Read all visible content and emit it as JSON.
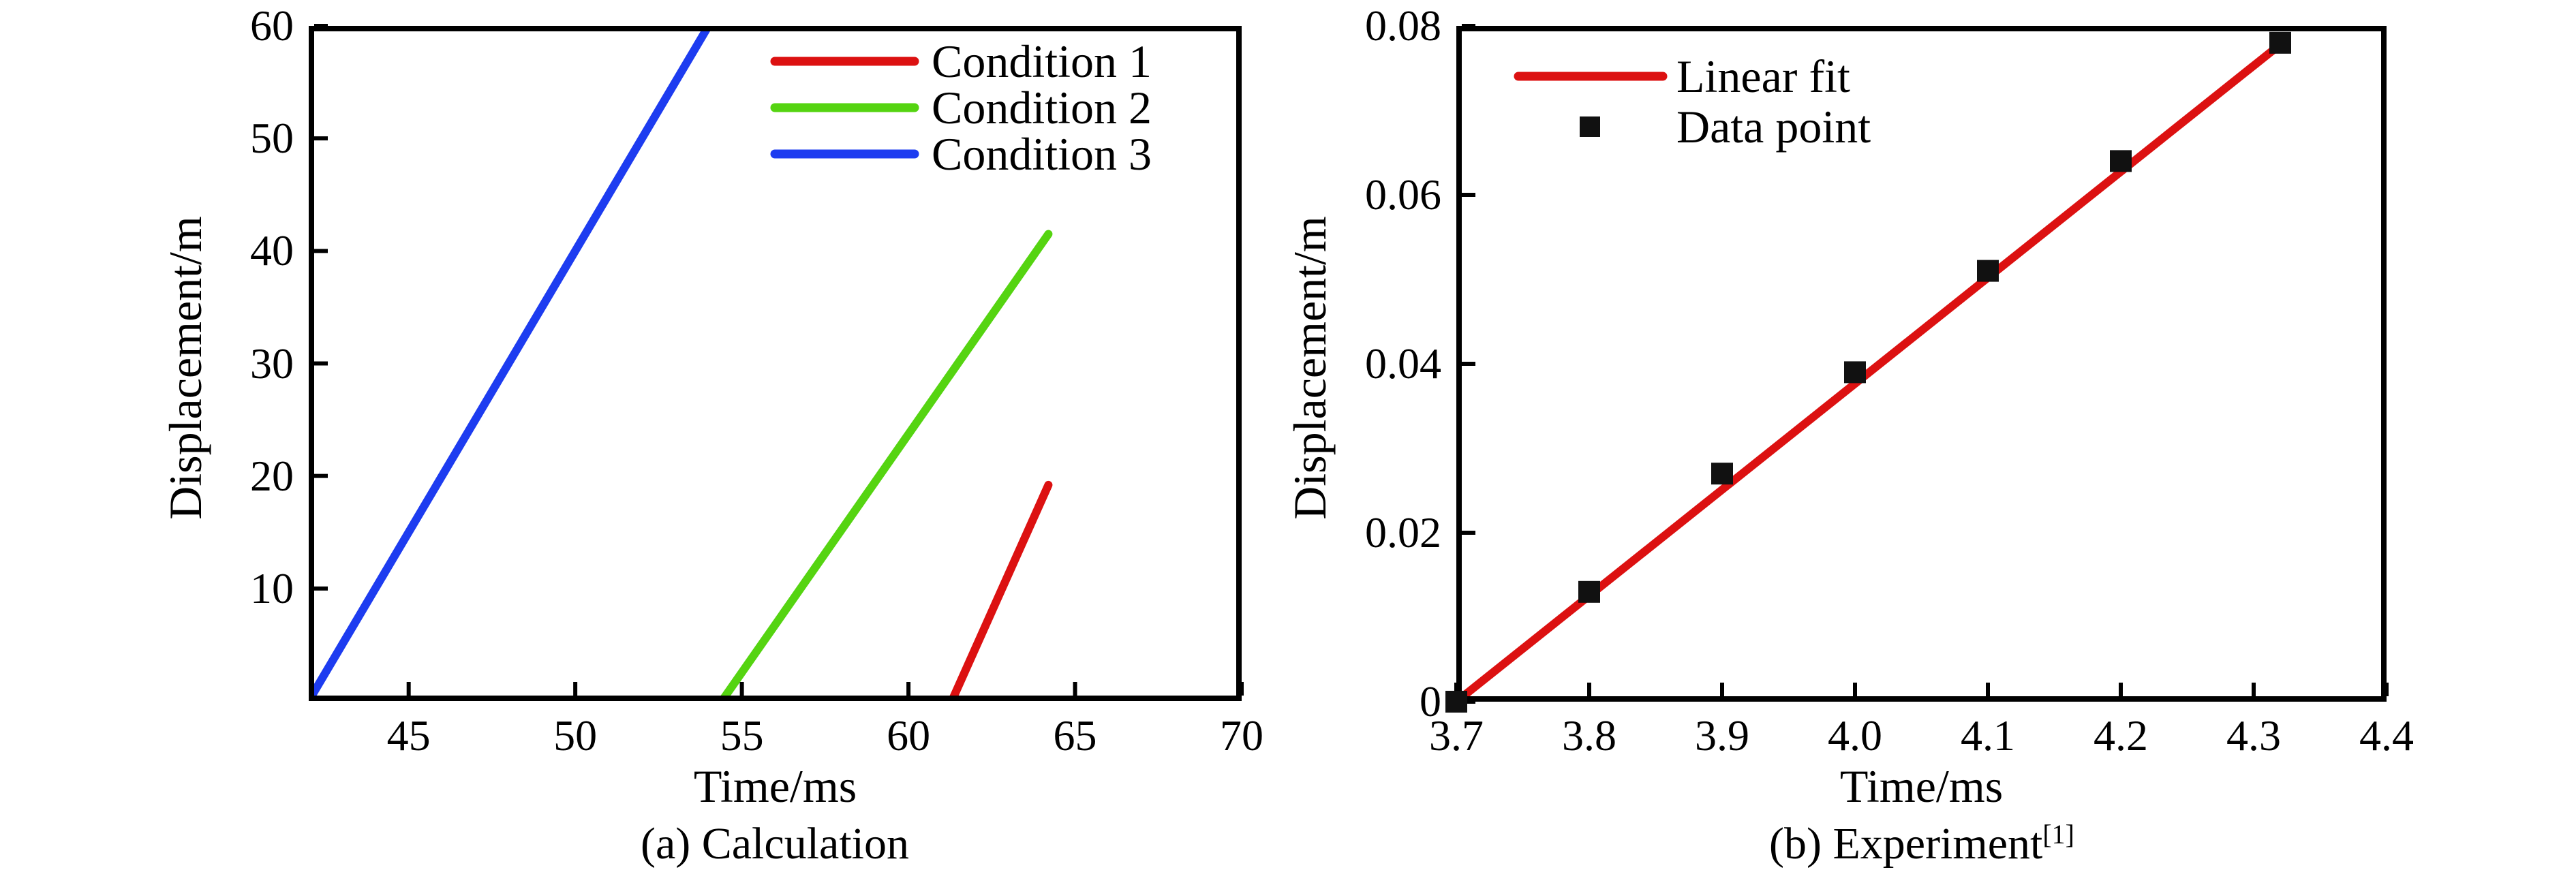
{
  "figure": {
    "background_color": "#ffffff",
    "text_color": "#000000"
  },
  "chart_data": [
    {
      "type": "line",
      "caption": "(a) Calculation",
      "caption_sup": "",
      "xlabel": "Time/ms",
      "ylabel": "Displacement/m",
      "xlim": [
        42,
        70
      ],
      "ylim": [
        0,
        60
      ],
      "xticks": [
        45,
        50,
        55,
        60,
        65,
        70
      ],
      "xtick_labels": [
        "45",
        "50",
        "55",
        "60",
        "65",
        "70"
      ],
      "yticks": [
        10,
        20,
        30,
        40,
        50,
        60
      ],
      "ytick_labels": [
        "10",
        "20",
        "30",
        "40",
        "50",
        "60"
      ],
      "grid": false,
      "legend_position": "top-right-inside",
      "series": [
        {
          "name": "Condition 1",
          "type": "line",
          "color": "#dc1111",
          "points": [
            [
              61.3,
              0
            ],
            [
              64.2,
              19.2
            ]
          ]
        },
        {
          "name": "Condition 2",
          "type": "line",
          "color": "#55d411",
          "points": [
            [
              54.4,
              0
            ],
            [
              64.2,
              41.5
            ]
          ]
        },
        {
          "name": "Condition 3",
          "type": "line",
          "color": "#1d3cf0",
          "points": [
            [
              42.0,
              0
            ],
            [
              54.0,
              60
            ]
          ]
        }
      ]
    },
    {
      "type": "line+scatter",
      "caption": "(b) Experiment",
      "caption_sup": "[1]",
      "xlabel": "Time/ms",
      "ylabel": "Displacement/m",
      "xlim": [
        3.7,
        4.4
      ],
      "ylim": [
        0,
        0.08
      ],
      "xticks": [
        3.7,
        3.8,
        3.9,
        4.0,
        4.1,
        4.2,
        4.3,
        4.4
      ],
      "xtick_labels": [
        "3.7",
        "3.8",
        "3.9",
        "4.0",
        "4.1",
        "4.2",
        "4.3",
        "4.4"
      ],
      "yticks": [
        0,
        0.02,
        0.04,
        0.06,
        0.08
      ],
      "ytick_labels": [
        "0",
        "0.02",
        "0.04",
        "0.06",
        "0.08"
      ],
      "grid": false,
      "legend_position": "top-left-inside",
      "series": [
        {
          "name": "Linear fit",
          "type": "line",
          "color": "#dc1111",
          "points": [
            [
              3.7,
              0
            ],
            [
              4.32,
              0.0778
            ]
          ]
        },
        {
          "name": "Data point",
          "type": "scatter",
          "marker": "square",
          "color": "#111111",
          "points": [
            [
              3.7,
              0
            ],
            [
              3.8,
              0.013
            ],
            [
              3.9,
              0.027
            ],
            [
              4.0,
              0.039
            ],
            [
              4.1,
              0.051
            ],
            [
              4.2,
              0.064
            ],
            [
              4.32,
              0.078
            ]
          ]
        }
      ]
    }
  ]
}
